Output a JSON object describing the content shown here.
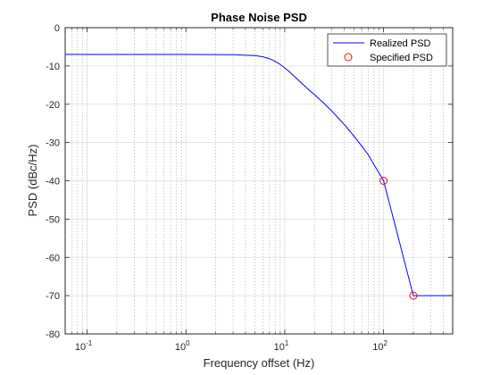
{
  "chart_data": {
    "type": "line",
    "title": "Phase Noise PSD",
    "xlabel": "Frequency offset (Hz)",
    "ylabel": "PSD (dBc/Hz)",
    "xscale": "log",
    "xlim": [
      0.06,
      500
    ],
    "ylim": [
      -80,
      0
    ],
    "yticks": [
      0,
      -10,
      -20,
      -30,
      -40,
      -50,
      -60,
      -70,
      -80
    ],
    "xticks": [
      {
        "value": 0.1,
        "base": "10",
        "exp": "-1"
      },
      {
        "value": 1,
        "base": "10",
        "exp": "0"
      },
      {
        "value": 10,
        "base": "10",
        "exp": "1"
      },
      {
        "value": 100,
        "base": "10",
        "exp": "2"
      }
    ],
    "grid": true,
    "legend_position": "top-right",
    "series": [
      {
        "name": "Realized PSD",
        "style": "line",
        "color": "#0000ff",
        "points": [
          [
            0.06,
            -7
          ],
          [
            1,
            -7
          ],
          [
            3,
            -7.05
          ],
          [
            5,
            -7.3
          ],
          [
            6,
            -7.6
          ],
          [
            7,
            -8.1
          ],
          [
            8,
            -8.8
          ],
          [
            9,
            -9.6
          ],
          [
            10,
            -10.5
          ],
          [
            11,
            -11.4
          ],
          [
            12,
            -12.3
          ],
          [
            14,
            -13.9
          ],
          [
            16,
            -15.3
          ],
          [
            18,
            -16.5
          ],
          [
            20,
            -17.5
          ],
          [
            25,
            -19.8
          ],
          [
            30,
            -21.8
          ],
          [
            40,
            -25.3
          ],
          [
            50,
            -28.3
          ],
          [
            60,
            -30.9
          ],
          [
            70,
            -33.2
          ],
          [
            80,
            -35.8
          ],
          [
            90,
            -38
          ],
          [
            100,
            -40
          ],
          [
            200,
            -70
          ],
          [
            500,
            -70
          ]
        ]
      },
      {
        "name": "Specified PSD",
        "style": "marker",
        "color": "#ff0000",
        "points": [
          [
            100,
            -40
          ],
          [
            200,
            -70
          ]
        ]
      }
    ]
  }
}
